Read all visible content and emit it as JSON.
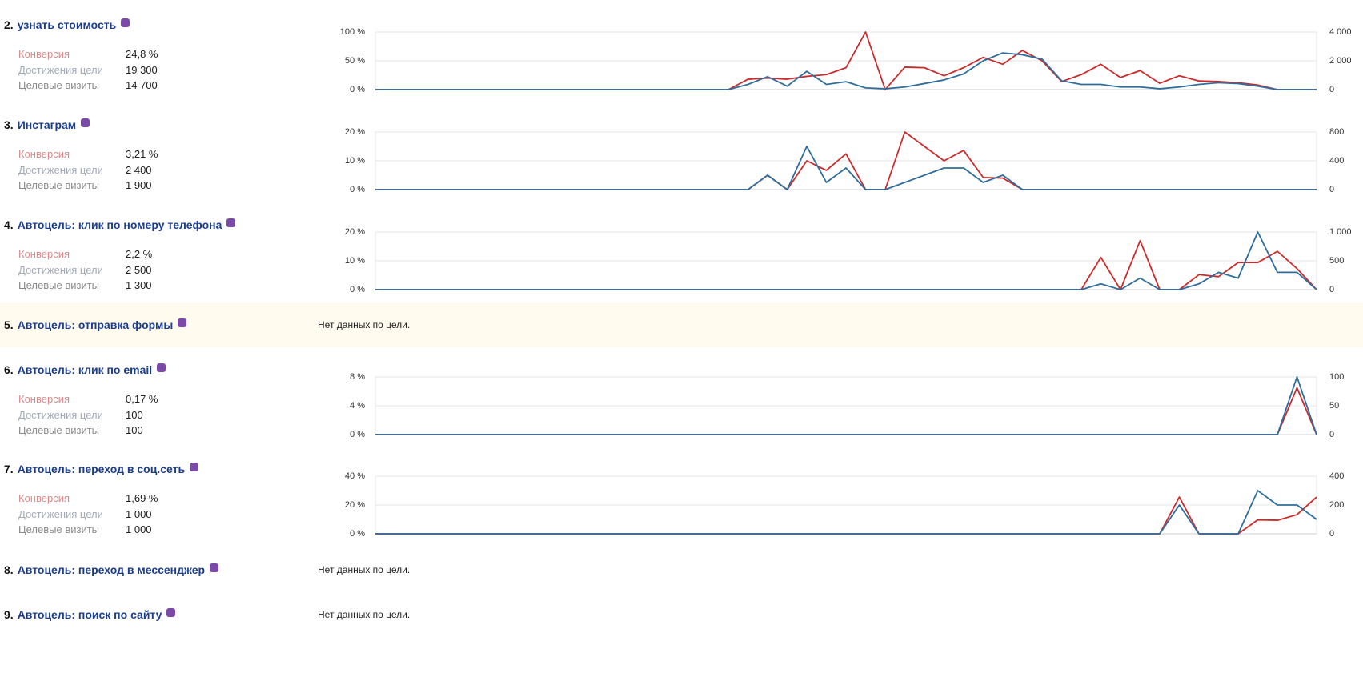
{
  "goals": [
    {
      "number": "2.",
      "title": "узнать стоимость",
      "stats": [
        {
          "label": "Конверсия",
          "value": "24,8 %"
        },
        {
          "label": "Достижения цели",
          "value": "19 300"
        },
        {
          "label": "Целевые визиты",
          "value": "14 700"
        }
      ],
      "chart_data": {
        "type": "line",
        "categories": [
          null,
          null,
          null,
          null,
          null,
          null,
          null,
          null,
          null,
          null,
          null,
          null,
          null,
          null,
          null,
          null,
          null,
          null,
          null,
          null,
          null,
          null,
          null,
          null,
          null,
          null,
          null,
          null,
          null,
          null,
          null,
          null,
          null,
          null,
          null,
          null,
          null,
          null,
          null,
          null,
          null,
          null,
          null,
          null,
          null,
          null,
          null,
          null,
          null
        ],
        "ylim": [
          0,
          100
        ],
        "yticks": [
          {
            "value": 0,
            "label": "0 %"
          },
          {
            "value": 50,
            "label": "50 %"
          },
          {
            "value": 100,
            "label": "100 %"
          }
        ],
        "y2lim": [
          0,
          4000
        ],
        "y2ticks": [
          0,
          {
            "value": 2000,
            "label": "2 000"
          },
          {
            "value": 4000,
            "label": "4 000"
          }
        ],
        "grid": true,
        "series": [
          {
            "color": "#cc2b2b",
            "values": [
              0,
              0,
              0,
              0,
              0,
              0,
              0,
              0,
              0,
              0,
              0,
              0,
              0,
              0,
              0,
              0,
              0,
              0,
              0,
              18,
              20,
              18,
              23,
              26,
              38,
              100,
              0,
              39,
              38,
              24,
              38,
              56,
              44,
              68,
              50,
              14,
              26,
              44,
              21,
              33,
              11,
              24,
              15,
              14,
              12,
              8,
              0,
              0,
              0
            ]
          },
          {
            "color": "#2f6e9c",
            "axis": "y2",
            "values": [
              0,
              0,
              0,
              0,
              0,
              0,
              0,
              0,
              0,
              0,
              0,
              0,
              0,
              0,
              0,
              0,
              0,
              0,
              0,
              360,
              900,
              240,
              1270,
              360,
              550,
              120,
              60,
              180,
              420,
              670,
              1090,
              2000,
              2550,
              2420,
              2120,
              610,
              360,
              360,
              180,
              180,
              60,
              180,
              360,
              480,
              420,
              240,
              0,
              0,
              0
            ]
          }
        ]
      }
    },
    {
      "number": "3.",
      "title": "Инстаграм",
      "stats": [
        {
          "label": "Конверсия",
          "value": "3,21 %"
        },
        {
          "label": "Достижения цели",
          "value": "2 400"
        },
        {
          "label": "Целевые визиты",
          "value": "1 900"
        }
      ],
      "chart_data": {
        "type": "line",
        "categories": [
          null,
          null,
          null,
          null,
          null,
          null,
          null,
          null,
          null,
          null,
          null,
          null,
          null,
          null,
          null,
          null,
          null,
          null,
          null,
          null,
          null,
          null,
          null,
          null,
          null,
          null,
          null,
          null,
          null,
          null,
          null,
          null,
          null,
          null,
          null,
          null,
          null,
          null,
          null,
          null,
          null,
          null,
          null,
          null,
          null,
          null,
          null,
          null,
          null
        ],
        "ylim": [
          0,
          20
        ],
        "yticks": [
          {
            "value": 0,
            "label": "0 %"
          },
          {
            "value": 10,
            "label": "10 %"
          },
          {
            "value": 20,
            "label": "20 %"
          }
        ],
        "y2lim": [
          0,
          800
        ],
        "y2ticks": [
          0,
          400,
          800
        ],
        "grid": true,
        "series": [
          {
            "color": "#cc2b2b",
            "values": [
              0,
              0,
              0,
              0,
              0,
              0,
              0,
              0,
              0,
              0,
              0,
              0,
              0,
              0,
              0,
              0,
              0,
              0,
              0,
              0,
              5,
              0,
              10,
              6.7,
              12.4,
              0,
              0,
              20,
              15,
              10,
              13.6,
              4.2,
              4,
              0,
              0,
              0,
              0,
              0,
              0,
              0,
              0,
              0,
              0,
              0,
              0,
              0,
              0,
              0,
              0
            ]
          },
          {
            "color": "#2f6e9c",
            "axis": "y2",
            "values": [
              0,
              0,
              0,
              0,
              0,
              0,
              0,
              0,
              0,
              0,
              0,
              0,
              0,
              0,
              0,
              0,
              0,
              0,
              0,
              0,
              200,
              0,
              600,
              100,
              300,
              0,
              0,
              100,
              200,
              300,
              300,
              100,
              200,
              0,
              0,
              0,
              0,
              0,
              0,
              0,
              0,
              0,
              0,
              0,
              0,
              0,
              0,
              0,
              0
            ]
          }
        ]
      }
    },
    {
      "number": "4.",
      "title": "Автоцель: клик по номеру телефона",
      "stats": [
        {
          "label": "Конверсия",
          "value": "2,2 %"
        },
        {
          "label": "Достижения цели",
          "value": "2 500"
        },
        {
          "label": "Целевые визиты",
          "value": "1 300"
        }
      ],
      "chart_data": {
        "type": "line",
        "categories": [
          null,
          null,
          null,
          null,
          null,
          null,
          null,
          null,
          null,
          null,
          null,
          null,
          null,
          null,
          null,
          null,
          null,
          null,
          null,
          null,
          null,
          null,
          null,
          null,
          null,
          null,
          null,
          null,
          null,
          null,
          null,
          null,
          null,
          null,
          null,
          null,
          null,
          null,
          null,
          null,
          null,
          null,
          null,
          null,
          null,
          null,
          null,
          null,
          null
        ],
        "ylim": [
          0,
          20
        ],
        "yticks": [
          {
            "value": 0,
            "label": "0 %"
          },
          {
            "value": 10,
            "label": "10 %"
          },
          {
            "value": 20,
            "label": "20 %"
          }
        ],
        "y2lim": [
          0,
          1000
        ],
        "y2ticks": [
          0,
          500,
          {
            "value": 1000,
            "label": "1 000"
          }
        ],
        "grid": true,
        "series": [
          {
            "color": "#cc2b2b",
            "values": [
              0,
              0,
              0,
              0,
              0,
              0,
              0,
              0,
              0,
              0,
              0,
              0,
              0,
              0,
              0,
              0,
              0,
              0,
              0,
              0,
              0,
              0,
              0,
              0,
              0,
              0,
              0,
              0,
              0,
              0,
              0,
              0,
              0,
              0,
              0,
              0,
              0,
              11.2,
              0,
              17,
              0,
              0,
              5.2,
              4.5,
              9.4,
              9.4,
              13.3,
              7.3,
              0
            ]
          },
          {
            "color": "#2f6e9c",
            "axis": "y2",
            "values": [
              0,
              0,
              0,
              0,
              0,
              0,
              0,
              0,
              0,
              0,
              0,
              0,
              0,
              0,
              0,
              0,
              0,
              0,
              0,
              0,
              0,
              0,
              0,
              0,
              0,
              0,
              0,
              0,
              0,
              0,
              0,
              0,
              0,
              0,
              0,
              0,
              0,
              100,
              0,
              200,
              0,
              0,
              100,
              300,
              200,
              1000,
              300,
              300,
              0
            ]
          }
        ]
      }
    },
    {
      "number": "5.",
      "title": "Автоцель: отправка формы",
      "message": "Нет данных по цели."
    },
    {
      "number": "6.",
      "title": "Автоцель: клик по email",
      "stats": [
        {
          "label": "Конверсия",
          "value": "0,17 %"
        },
        {
          "label": "Достижения цели",
          "value": "100"
        },
        {
          "label": "Целевые визиты",
          "value": "100"
        }
      ],
      "chart_data": {
        "type": "line",
        "categories": [
          null,
          null,
          null,
          null,
          null,
          null,
          null,
          null,
          null,
          null,
          null,
          null,
          null,
          null,
          null,
          null,
          null,
          null,
          null,
          null,
          null,
          null,
          null,
          null,
          null,
          null,
          null,
          null,
          null,
          null,
          null,
          null,
          null,
          null,
          null,
          null,
          null,
          null,
          null,
          null,
          null,
          null,
          null,
          null,
          null,
          null,
          null,
          null,
          null
        ],
        "ylim": [
          0,
          8
        ],
        "yticks": [
          {
            "value": 0,
            "label": "0 %"
          },
          {
            "value": 4,
            "label": "4 %"
          },
          {
            "value": 8,
            "label": "8 %"
          }
        ],
        "y2lim": [
          0,
          100
        ],
        "y2ticks": [
          0,
          50,
          100
        ],
        "grid": true,
        "series": [
          {
            "color": "#cc2b2b",
            "values": [
              0,
              0,
              0,
              0,
              0,
              0,
              0,
              0,
              0,
              0,
              0,
              0,
              0,
              0,
              0,
              0,
              0,
              0,
              0,
              0,
              0,
              0,
              0,
              0,
              0,
              0,
              0,
              0,
              0,
              0,
              0,
              0,
              0,
              0,
              0,
              0,
              0,
              0,
              0,
              0,
              0,
              0,
              0,
              0,
              0,
              0,
              0,
              6.5,
              0
            ]
          },
          {
            "color": "#2f6e9c",
            "axis": "y2",
            "values": [
              0,
              0,
              0,
              0,
              0,
              0,
              0,
              0,
              0,
              0,
              0,
              0,
              0,
              0,
              0,
              0,
              0,
              0,
              0,
              0,
              0,
              0,
              0,
              0,
              0,
              0,
              0,
              0,
              0,
              0,
              0,
              0,
              0,
              0,
              0,
              0,
              0,
              0,
              0,
              0,
              0,
              0,
              0,
              0,
              0,
              0,
              0,
              100,
              0
            ]
          }
        ]
      }
    },
    {
      "number": "7.",
      "title": "Автоцель: переход в соц.сеть",
      "stats": [
        {
          "label": "Конверсия",
          "value": "1,69 %"
        },
        {
          "label": "Достижения цели",
          "value": "1 000"
        },
        {
          "label": "Целевые визиты",
          "value": "1 000"
        }
      ],
      "chart_data": {
        "type": "line",
        "categories": [
          null,
          null,
          null,
          null,
          null,
          null,
          null,
          null,
          null,
          null,
          null,
          null,
          null,
          null,
          null,
          null,
          null,
          null,
          null,
          null,
          null,
          null,
          null,
          null,
          null,
          null,
          null,
          null,
          null,
          null,
          null,
          null,
          null,
          null,
          null,
          null,
          null,
          null,
          null,
          null,
          null,
          null,
          null,
          null,
          null,
          null,
          null,
          null,
          null
        ],
        "ylim": [
          0,
          40
        ],
        "yticks": [
          {
            "value": 0,
            "label": "0 %"
          },
          {
            "value": 20,
            "label": "20 %"
          },
          {
            "value": 40,
            "label": "40 %"
          }
        ],
        "y2lim": [
          0,
          400
        ],
        "y2ticks": [
          0,
          200,
          400
        ],
        "grid": true,
        "series": [
          {
            "color": "#cc2b2b",
            "values": [
              0,
              0,
              0,
              0,
              0,
              0,
              0,
              0,
              0,
              0,
              0,
              0,
              0,
              0,
              0,
              0,
              0,
              0,
              0,
              0,
              0,
              0,
              0,
              0,
              0,
              0,
              0,
              0,
              0,
              0,
              0,
              0,
              0,
              0,
              0,
              0,
              0,
              0,
              0,
              0,
              0,
              25.5,
              0,
              0,
              0,
              9.7,
              9.4,
              13.3,
              25.5
            ]
          },
          {
            "color": "#2f6e9c",
            "axis": "y2",
            "values": [
              0,
              0,
              0,
              0,
              0,
              0,
              0,
              0,
              0,
              0,
              0,
              0,
              0,
              0,
              0,
              0,
              0,
              0,
              0,
              0,
              0,
              0,
              0,
              0,
              0,
              0,
              0,
              0,
              0,
              0,
              0,
              0,
              0,
              0,
              0,
              0,
              0,
              0,
              0,
              0,
              0,
              200,
              0,
              0,
              0,
              300,
              200,
              200,
              100
            ]
          }
        ]
      }
    },
    {
      "number": "8.",
      "title": "Автоцель: переход в мессенджер",
      "message": "Нет данных по цели."
    },
    {
      "number": "9.",
      "title": "Автоцель: поиск по сайту",
      "message": "Нет данных по цели."
    }
  ]
}
